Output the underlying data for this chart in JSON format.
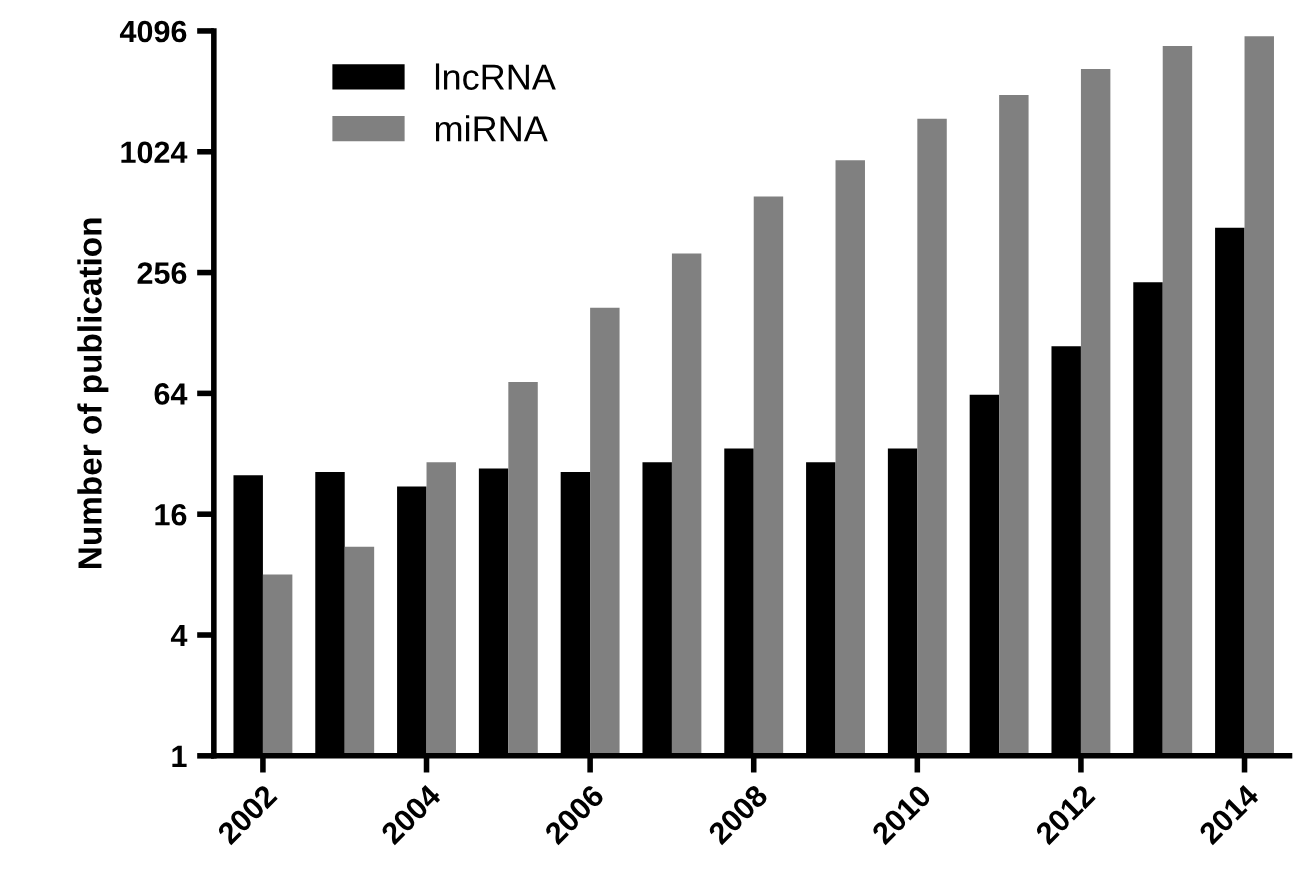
{
  "chart_data": {
    "type": "bar",
    "ylabel": "Number of publication",
    "categories": [
      "2002",
      null,
      "2004",
      null,
      "2006",
      null,
      "2008",
      null,
      "2010",
      null,
      "2012",
      null,
      "2014"
    ],
    "series": [
      {
        "name": "lncRNA",
        "color": "#000000",
        "values": [
          25,
          26,
          22,
          27,
          26,
          29,
          34,
          29,
          34,
          63,
          110,
          229,
          428
        ]
      },
      {
        "name": "miRNA",
        "color": "#808080",
        "values": [
          8,
          11,
          29,
          73,
          171,
          319,
          613,
          929,
          1495,
          1966,
          2643,
          3448,
          3856
        ]
      }
    ],
    "log": true,
    "ylim": [
      1,
      4096
    ],
    "yticks": [
      1,
      4,
      16,
      64,
      256,
      1024,
      4096
    ],
    "grid": false,
    "legend": "top left"
  }
}
